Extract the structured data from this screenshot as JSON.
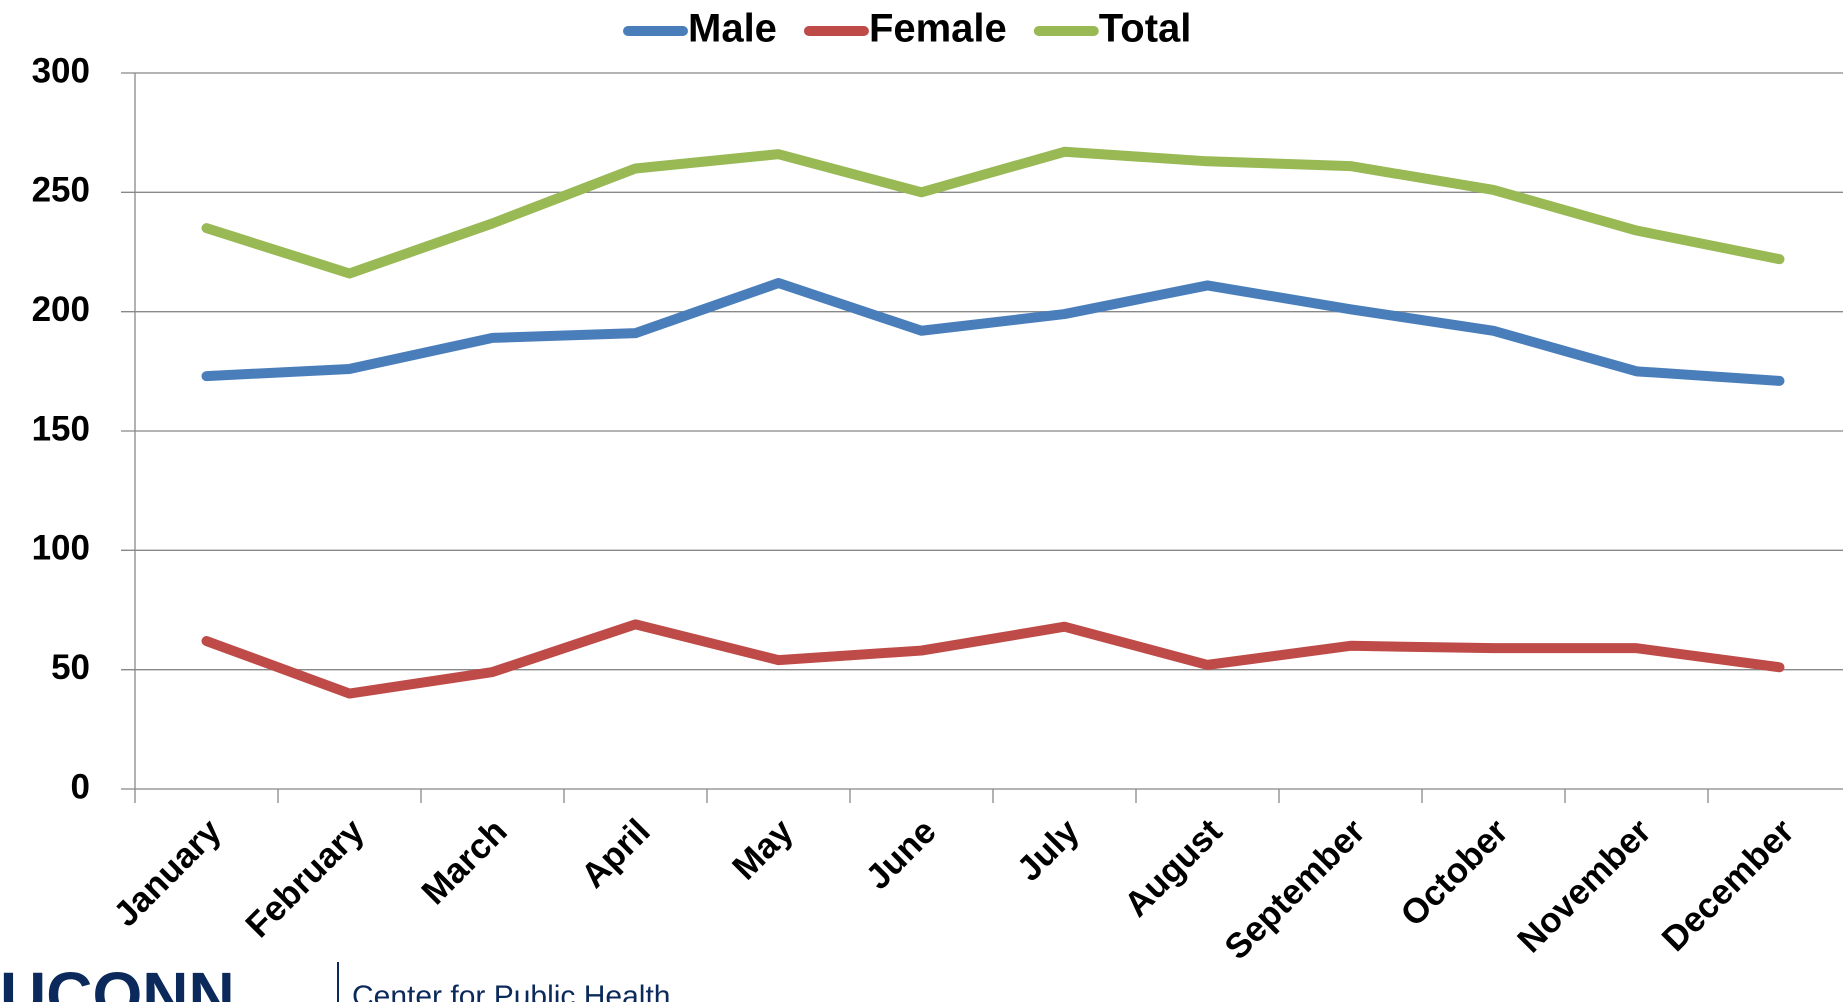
{
  "chart_data": {
    "type": "line",
    "categories": [
      "January",
      "February",
      "March",
      "April",
      "May",
      "June",
      "July",
      "August",
      "September",
      "October",
      "November",
      "December"
    ],
    "series": [
      {
        "name": "Male",
        "color": "#4a7ebb",
        "values": [
          173,
          176,
          189,
          191,
          212,
          192,
          199,
          211,
          201,
          192,
          175,
          171
        ]
      },
      {
        "name": "Female",
        "color": "#be4b48",
        "values": [
          62,
          40,
          49,
          69,
          54,
          58,
          68,
          52,
          60,
          59,
          59,
          51
        ]
      },
      {
        "name": "Total",
        "color": "#98b954",
        "values": [
          235,
          216,
          237,
          260,
          266,
          250,
          267,
          263,
          261,
          251,
          234,
          222
        ]
      }
    ],
    "ylim": [
      0,
      300
    ],
    "yticks": [
      0,
      50,
      100,
      150,
      200,
      250,
      300
    ],
    "grid": true,
    "legend": "top"
  },
  "footer": {
    "logo": "UCONN",
    "text": "Center for Public Health"
  }
}
